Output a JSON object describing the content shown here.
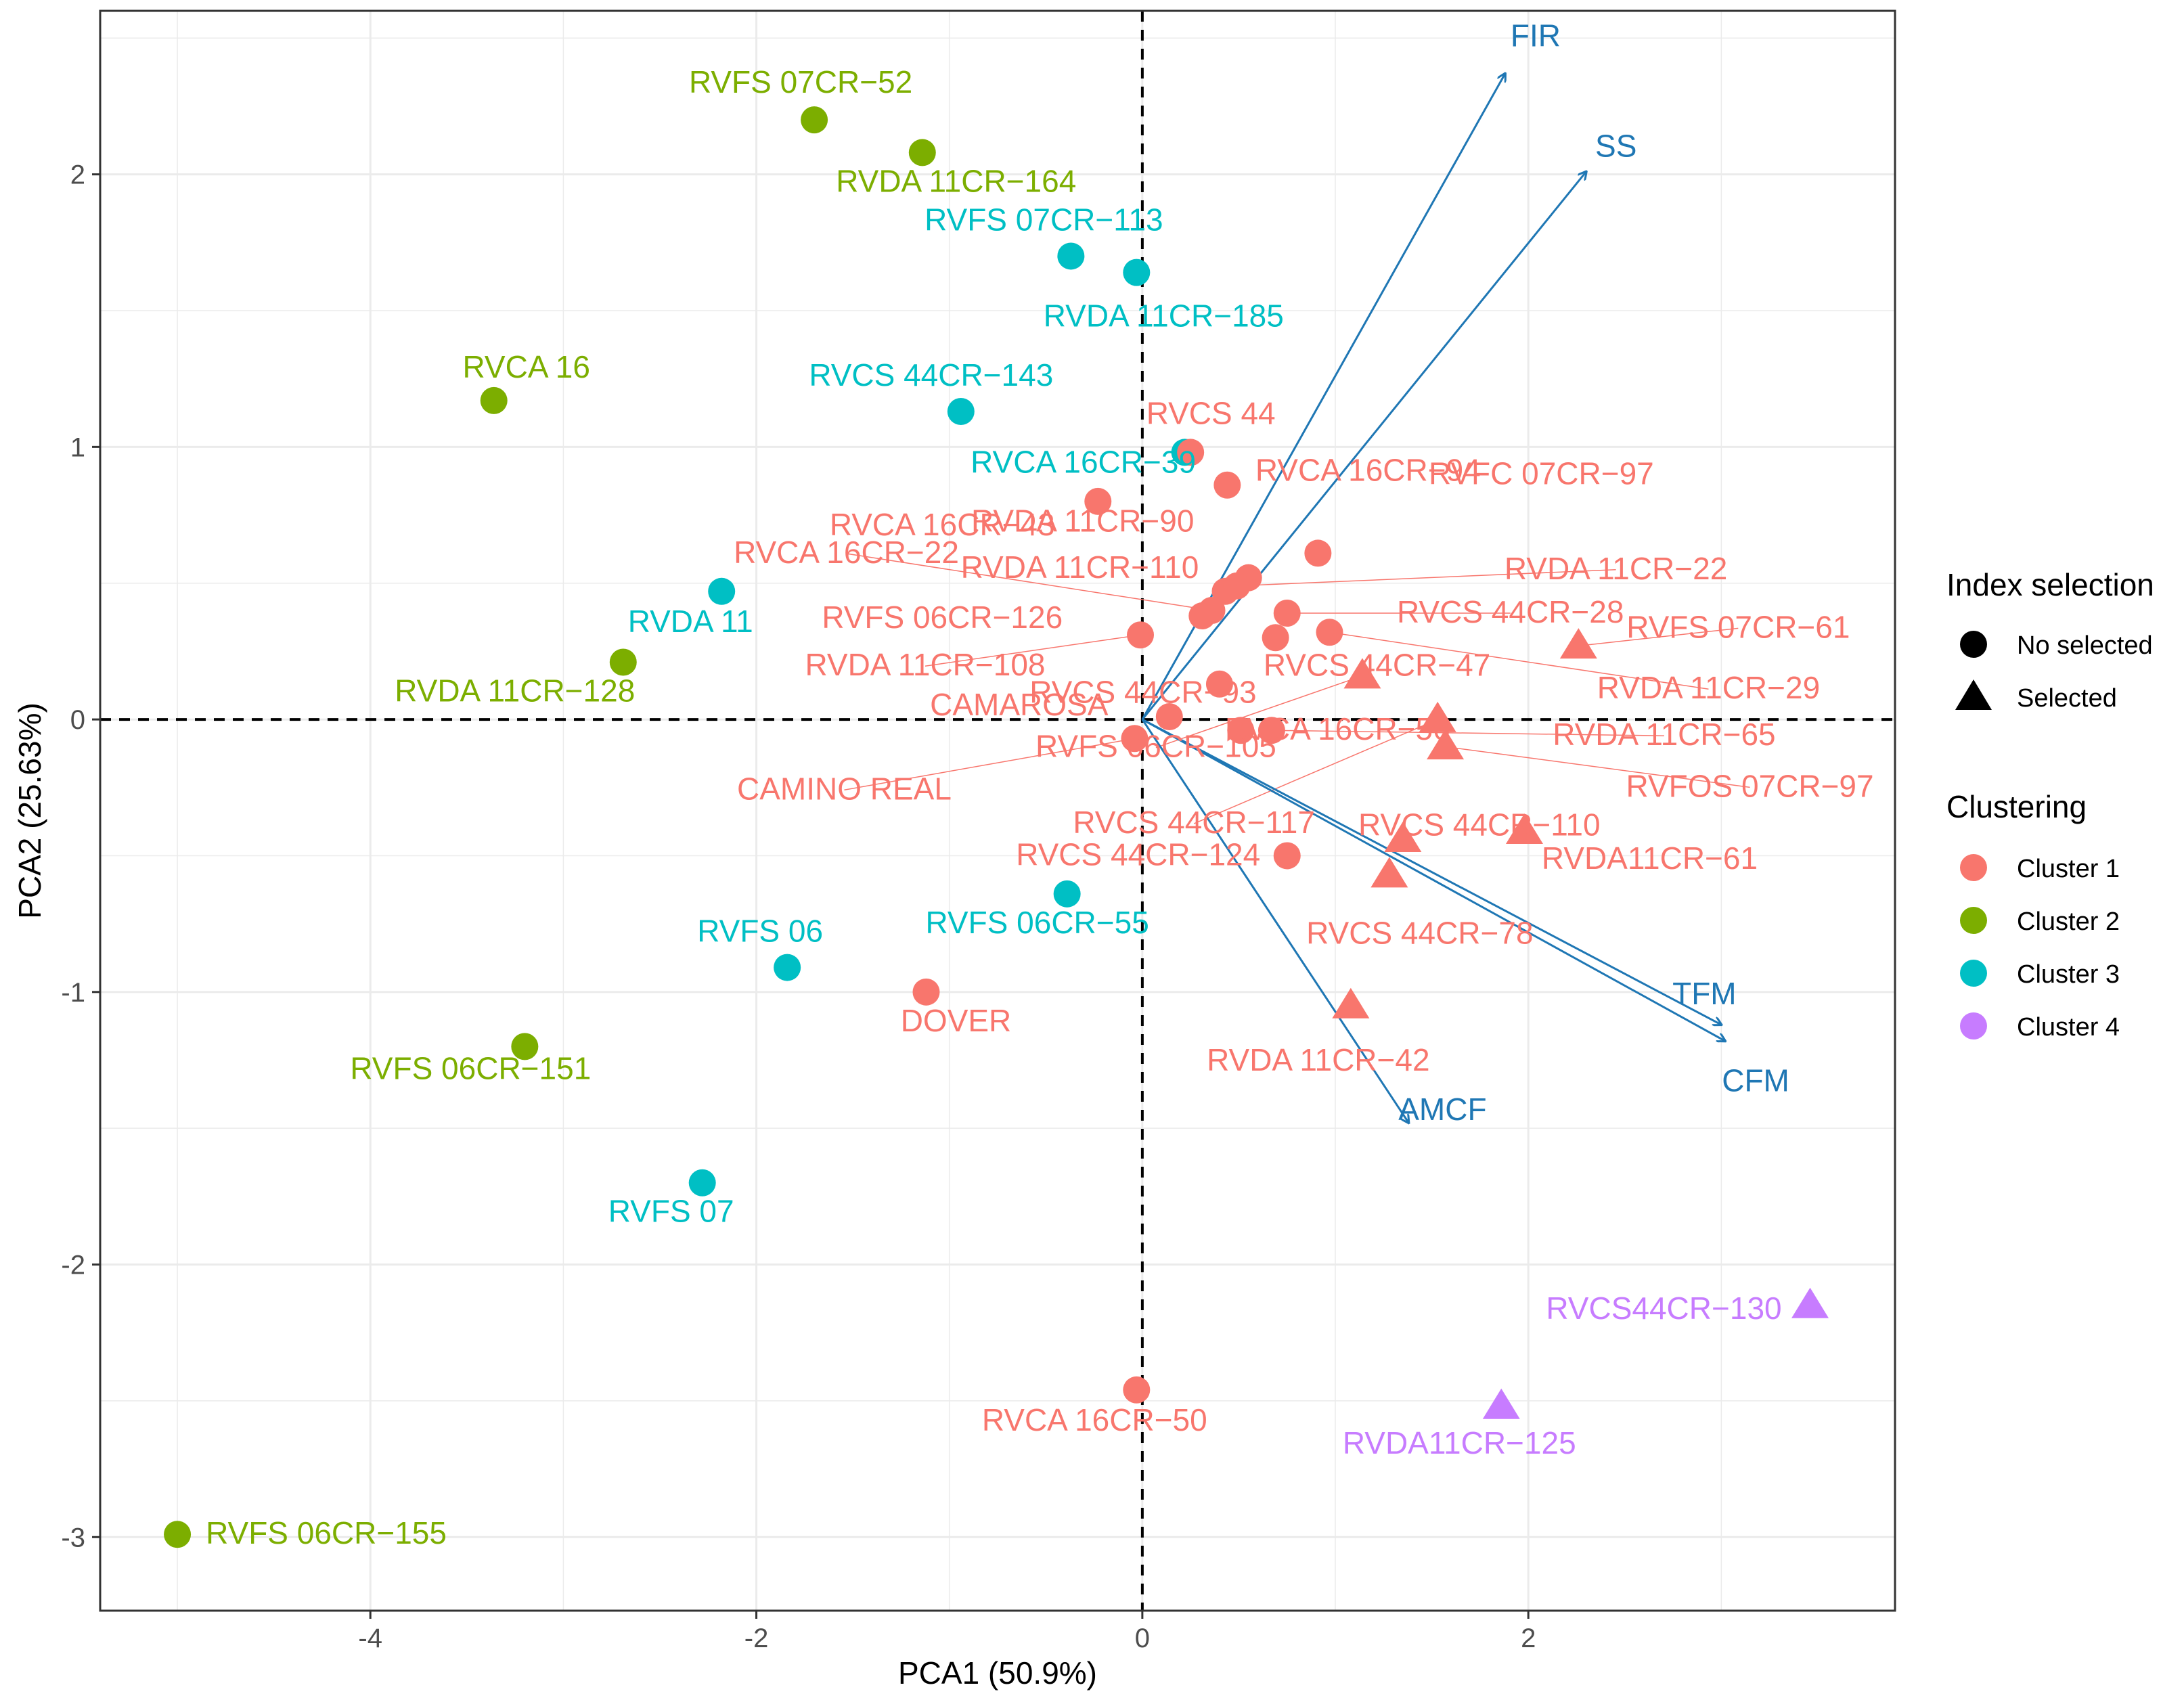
{
  "chart_data": {
    "type": "scatter",
    "title": "",
    "xlabel": "PCA1 (50.9%)",
    "ylabel": "PCA2 (25.63%)",
    "xlim": [
      -5.4,
      3.9
    ],
    "ylim": [
      -3.27,
      2.6
    ],
    "xticks": [
      -4,
      -2,
      0,
      2
    ],
    "yticks": [
      -3,
      -2,
      -1,
      0,
      1,
      2
    ],
    "grid": true,
    "reference_lines": {
      "x": 0,
      "y": 0,
      "style": "dashed"
    },
    "colors": {
      "Cluster 1": "#f8766d",
      "Cluster 2": "#7cae00",
      "Cluster 3": "#00bfc4",
      "Cluster 4": "#c77cff",
      "arrow": "#1f77b4",
      "label_lines": "#f8766d"
    },
    "legend": {
      "placement": "right",
      "shape_title": "Index selection",
      "shape_items": [
        {
          "label": "No selected",
          "shape": "circle"
        },
        {
          "label": "Selected",
          "shape": "triangle"
        }
      ],
      "color_title": "Clustering",
      "color_items": [
        {
          "label": "Cluster 1"
        },
        {
          "label": "Cluster 2"
        },
        {
          "label": "Cluster 3"
        },
        {
          "label": "Cluster 4"
        }
      ]
    },
    "vectors": [
      {
        "name": "FIR",
        "x": 1.88,
        "y": 2.37
      },
      {
        "name": "SS",
        "x": 2.3,
        "y": 2.01
      },
      {
        "name": "TFM",
        "x": 3.0,
        "y": -1.12
      },
      {
        "name": "CFM",
        "x": 3.02,
        "y": -1.18
      },
      {
        "name": "AMCF",
        "x": 1.38,
        "y": -1.48
      }
    ],
    "points": [
      {
        "label": "RVFS 07CR−52",
        "x": -1.7,
        "y": 2.2,
        "cluster": "Cluster 2",
        "selected": false
      },
      {
        "label": "RVDA 11CR−164",
        "x": -1.14,
        "y": 2.08,
        "cluster": "Cluster 2",
        "selected": false
      },
      {
        "label": "RVCA 16",
        "x": -3.36,
        "y": 1.17,
        "cluster": "Cluster 2",
        "selected": false
      },
      {
        "label": "RVDA 11CR−128",
        "x": -2.69,
        "y": 0.21,
        "cluster": "Cluster 2",
        "selected": false
      },
      {
        "label": "RVFS 06CR−151",
        "x": -3.2,
        "y": -1.2,
        "cluster": "Cluster 2",
        "selected": false
      },
      {
        "label": "RVFS 06CR−155",
        "x": -5.0,
        "y": -2.99,
        "cluster": "Cluster 2",
        "selected": false
      },
      {
        "label": "RVFS 07CR−113",
        "x": -0.37,
        "y": 1.7,
        "cluster": "Cluster 3",
        "selected": false
      },
      {
        "label": "RVDA 11CR−185",
        "x": -0.03,
        "y": 1.64,
        "cluster": "Cluster 3",
        "selected": false
      },
      {
        "label": "RVCS 44CR−143",
        "x": -0.94,
        "y": 1.13,
        "cluster": "Cluster 3",
        "selected": false
      },
      {
        "label": "RVCA 16CR−39",
        "x": 0.22,
        "y": 0.98,
        "cluster": "Cluster 3",
        "selected": false
      },
      {
        "label": "RVDA 11",
        "x": -2.18,
        "y": 0.47,
        "cluster": "Cluster 3",
        "selected": false
      },
      {
        "label": "RVFS 06CR−55",
        "x": -0.39,
        "y": -0.64,
        "cluster": "Cluster 3",
        "selected": false
      },
      {
        "label": "RVFS 06",
        "x": -1.84,
        "y": -0.91,
        "cluster": "Cluster 3",
        "selected": false
      },
      {
        "label": "RVFS 07",
        "x": -2.28,
        "y": -1.7,
        "cluster": "Cluster 3",
        "selected": false
      },
      {
        "label": "RVCS 44",
        "x": 0.25,
        "y": 0.98,
        "cluster": "Cluster 1",
        "selected": false
      },
      {
        "label": "RVCA 16CR−94",
        "x": 0.44,
        "y": 0.86,
        "cluster": "Cluster 1",
        "selected": false
      },
      {
        "label": "RVCA 16CR−43",
        "x": -0.23,
        "y": 0.8,
        "cluster": "Cluster 1",
        "selected": false
      },
      {
        "label": "RVDA 11CR−90",
        "x": 0.55,
        "y": 0.52,
        "cluster": "Cluster 1",
        "selected": false
      },
      {
        "label": "RVFC 07CR−97",
        "x": 0.91,
        "y": 0.61,
        "cluster": "Cluster 1",
        "selected": false
      },
      {
        "label": "RVDA 11CR−110",
        "x": 0.43,
        "y": 0.47,
        "cluster": "Cluster 1",
        "selected": false
      },
      {
        "label": "RVCA 16CR−22",
        "x": 0.36,
        "y": 0.4,
        "cluster": "Cluster 1",
        "selected": false
      },
      {
        "label": "RVDA 11CR−22",
        "x": 0.49,
        "y": 0.49,
        "cluster": "Cluster 1",
        "selected": false
      },
      {
        "label": "RVFS 06CR−126",
        "x": 0.31,
        "y": 0.38,
        "cluster": "Cluster 1",
        "selected": false
      },
      {
        "label": "RVCS 44CR−28",
        "x": 0.75,
        "y": 0.39,
        "cluster": "Cluster 1",
        "selected": false
      },
      {
        "label": "RVDA 11CR−108",
        "x": -0.01,
        "y": 0.31,
        "cluster": "Cluster 1",
        "selected": false
      },
      {
        "label": "RVCS 44CR−93",
        "x": 0.4,
        "y": 0.13,
        "cluster": "Cluster 1",
        "selected": false
      },
      {
        "label": "RVCS 44CR−47",
        "x": 0.69,
        "y": 0.3,
        "cluster": "Cluster 1",
        "selected": false
      },
      {
        "label": "RVDA 11CR−29",
        "x": 0.97,
        "y": 0.32,
        "cluster": "Cluster 1",
        "selected": false
      },
      {
        "label": "CAMAROSA",
        "x": 0.14,
        "y": 0.01,
        "cluster": "Cluster 1",
        "selected": false
      },
      {
        "label": "RVCA 16CR−56",
        "x": 0.51,
        "y": -0.04,
        "cluster": "Cluster 1",
        "selected": false
      },
      {
        "label": "RVDA 11CR−65",
        "x": 0.67,
        "y": -0.04,
        "cluster": "Cluster 1",
        "selected": false
      },
      {
        "label": "CAMINO REAL",
        "x": -0.04,
        "y": -0.07,
        "cluster": "Cluster 1",
        "selected": false
      },
      {
        "label": "RVCS 44CR−124",
        "x": 0.75,
        "y": -0.5,
        "cluster": "Cluster 1",
        "selected": false
      },
      {
        "label": "DOVER",
        "x": -1.12,
        "y": -1.0,
        "cluster": "Cluster 1",
        "selected": false
      },
      {
        "label": "RVCA 16CR−50",
        "x": -0.03,
        "y": -2.46,
        "cluster": "Cluster 1",
        "selected": false
      },
      {
        "label": "RVFS 07CR−61",
        "x": 2.26,
        "y": 0.27,
        "cluster": "Cluster 1",
        "selected": true
      },
      {
        "label": "RVFS 06CR−105",
        "x": 1.14,
        "y": 0.16,
        "cluster": "Cluster 1",
        "selected": true
      },
      {
        "label": "RVCS 44CR−117",
        "x": 1.53,
        "y": 0.0,
        "cluster": "Cluster 1",
        "selected": true
      },
      {
        "label": "RVFOS 07CR−97",
        "x": 1.57,
        "y": -0.1,
        "cluster": "Cluster 1",
        "selected": true
      },
      {
        "label": "RVCS 44CR−110",
        "x": 1.35,
        "y": -0.44,
        "cluster": "Cluster 1",
        "selected": true
      },
      {
        "label": "RVDA11CR−61",
        "x": 1.98,
        "y": -0.41,
        "cluster": "Cluster 1",
        "selected": true
      },
      {
        "label": "RVCS 44CR−78",
        "x": 1.28,
        "y": -0.57,
        "cluster": "Cluster 1",
        "selected": true
      },
      {
        "label": "RVDA 11CR−42",
        "x": 1.08,
        "y": -1.05,
        "cluster": "Cluster 1",
        "selected": true
      },
      {
        "label": "RVCS44CR−130",
        "x": 3.46,
        "y": -2.15,
        "cluster": "Cluster 4",
        "selected": true
      },
      {
        "label": "RVDA11CR−125",
        "x": 1.86,
        "y": -2.52,
        "cluster": "Cluster 4",
        "selected": true
      }
    ]
  }
}
